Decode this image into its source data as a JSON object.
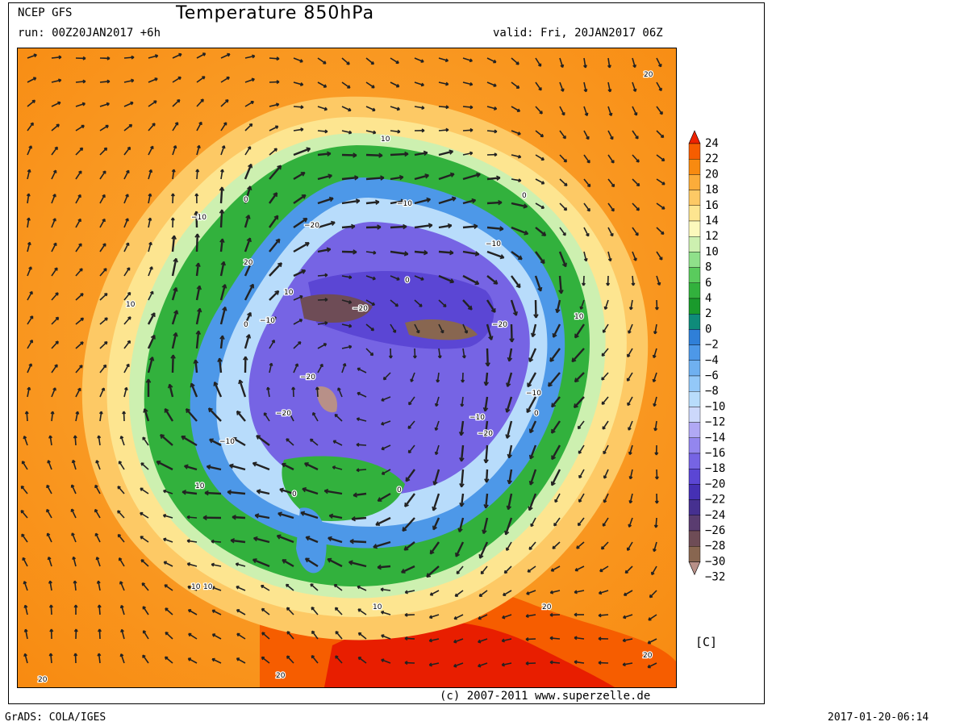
{
  "header": {
    "model": "NCEP GFS",
    "title": "Temperature 850hPa",
    "run": "run: 00Z20JAN2017 +6h",
    "valid": "valid: Fri, 20JAN2017 06Z"
  },
  "legend": {
    "unit": "[C]",
    "levels": [
      "24",
      "22",
      "20",
      "18",
      "16",
      "14",
      "12",
      "10",
      "8",
      "6",
      "4",
      "2",
      "0",
      "-2",
      "-4",
      "-6",
      "-8",
      "-10",
      "-12",
      "-14",
      "-16",
      "-18",
      "-20",
      "-22",
      "-24",
      "-26",
      "-28",
      "-30",
      "-32"
    ],
    "colors": [
      "#ee2200",
      "#f65d00",
      "#f88a10",
      "#fbac3a",
      "#fdc965",
      "#fde590",
      "#fcf9bc",
      "#cdf0b0",
      "#8fe08a",
      "#5acb5d",
      "#32b13d",
      "#1a9a2c",
      "#0f8b7a",
      "#2f7fd8",
      "#4d98e8",
      "#6fb0f0",
      "#93c8f8",
      "#b8dcfb",
      "#ccd8fb",
      "#b0a8f4",
      "#9386ee",
      "#7664e4",
      "#5b46d4",
      "#4530b4",
      "#463090",
      "#5a3c70",
      "#6e4c56",
      "#886650",
      "#b89088"
    ]
  },
  "map": {
    "contour_labels": [
      "20",
      "10",
      "0",
      "-10",
      "-20",
      "-10",
      "0",
      "10",
      "20",
      "10",
      "0",
      "-10",
      "-20",
      "-20",
      "-20",
      "-10",
      "0",
      "10",
      "20",
      "10",
      "-10",
      "-20",
      "-10",
      "0",
      "10",
      "20",
      "-10",
      "-20",
      "0",
      "10",
      "0",
      "10",
      "20",
      "20"
    ],
    "icon": "wind-barb-arrows"
  },
  "footer": {
    "credit": "(c) 2007-2011 www.superzelle.de",
    "software": "GrADS: COLA/IGES",
    "timestamp": "2017-01-20-06:14"
  }
}
